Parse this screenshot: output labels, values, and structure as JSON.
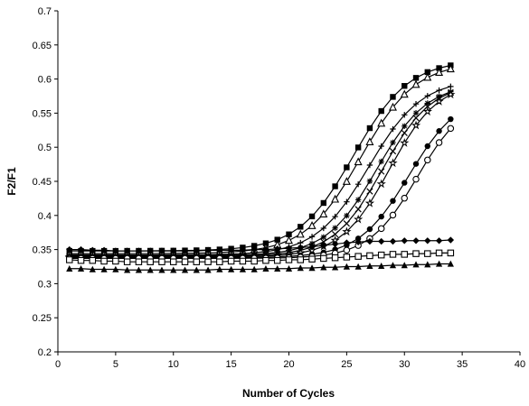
{
  "chart_data": {
    "type": "line",
    "xlabel": "Number of Cycles",
    "ylabel": "F2/F1",
    "xlim": [
      0,
      40
    ],
    "ylim": [
      0.2,
      0.7
    ],
    "xticks": [
      "0",
      "5",
      "10",
      "15",
      "20",
      "25",
      "30",
      "35",
      "40"
    ],
    "yticks": [
      "0.2",
      "0.25",
      "0.3",
      "0.35",
      "0.4",
      "0.45",
      "0.5",
      "0.55",
      "0.6",
      "0.65",
      "0.7"
    ],
    "grid": false,
    "series_colors": {
      "line": "#000000"
    },
    "series": [
      {
        "marker": "filled-square",
        "base": 0.348,
        "top": 0.628,
        "mid": 25.6,
        "slope": 0.42
      },
      {
        "marker": "open-triangle",
        "base": 0.344,
        "top": 0.625,
        "mid": 26.2,
        "slope": 0.42
      },
      {
        "marker": "plus",
        "base": 0.342,
        "top": 0.6,
        "mid": 26.9,
        "slope": 0.44
      },
      {
        "marker": "star",
        "base": 0.341,
        "top": 0.594,
        "mid": 27.6,
        "slope": 0.46
      },
      {
        "marker": "x",
        "base": 0.34,
        "top": 0.595,
        "mid": 28.1,
        "slope": 0.47
      },
      {
        "marker": "open-star",
        "base": 0.339,
        "top": 0.596,
        "mid": 28.7,
        "slope": 0.48
      },
      {
        "marker": "filled-circle",
        "base": 0.338,
        "top": 0.58,
        "mid": 30.4,
        "slope": 0.46
      },
      {
        "marker": "open-circle",
        "base": 0.337,
        "top": 0.575,
        "mid": 31.1,
        "slope": 0.48
      },
      {
        "marker": "filled-diamond",
        "x": [
          1,
          2,
          3,
          4,
          5,
          6,
          7,
          8,
          9,
          10,
          11,
          12,
          13,
          14,
          15,
          16,
          17,
          18,
          19,
          20,
          21,
          22,
          23,
          24,
          25,
          26,
          27,
          28,
          29,
          30,
          31,
          32,
          33,
          34
        ],
        "y": [
          0.35,
          0.35,
          0.349,
          0.349,
          0.348,
          0.348,
          0.348,
          0.348,
          0.348,
          0.348,
          0.348,
          0.348,
          0.349,
          0.349,
          0.349,
          0.349,
          0.35,
          0.35,
          0.351,
          0.352,
          0.353,
          0.354,
          0.356,
          0.358,
          0.36,
          0.361,
          0.362,
          0.362,
          0.362,
          0.363,
          0.363,
          0.363,
          0.363,
          0.364
        ]
      },
      {
        "marker": "open-square",
        "x": [
          1,
          2,
          3,
          4,
          5,
          6,
          7,
          8,
          9,
          10,
          11,
          12,
          13,
          14,
          15,
          16,
          17,
          18,
          19,
          20,
          21,
          22,
          23,
          24,
          25,
          26,
          27,
          28,
          29,
          30,
          31,
          32,
          33,
          34
        ],
        "y": [
          0.335,
          0.334,
          0.334,
          0.333,
          0.333,
          0.332,
          0.332,
          0.332,
          0.332,
          0.332,
          0.332,
          0.332,
          0.332,
          0.332,
          0.333,
          0.333,
          0.333,
          0.334,
          0.334,
          0.335,
          0.335,
          0.336,
          0.337,
          0.338,
          0.339,
          0.34,
          0.341,
          0.342,
          0.343,
          0.343,
          0.344,
          0.344,
          0.345,
          0.345
        ]
      },
      {
        "marker": "filled-triangle",
        "x": [
          1,
          2,
          3,
          4,
          5,
          6,
          7,
          8,
          9,
          10,
          11,
          12,
          13,
          14,
          15,
          16,
          17,
          18,
          19,
          20,
          21,
          22,
          23,
          24,
          25,
          26,
          27,
          28,
          29,
          30,
          31,
          32,
          33,
          34
        ],
        "y": [
          0.322,
          0.322,
          0.321,
          0.321,
          0.321,
          0.32,
          0.32,
          0.32,
          0.32,
          0.32,
          0.32,
          0.32,
          0.32,
          0.321,
          0.321,
          0.321,
          0.321,
          0.322,
          0.322,
          0.322,
          0.323,
          0.323,
          0.324,
          0.324,
          0.325,
          0.325,
          0.326,
          0.326,
          0.327,
          0.327,
          0.328,
          0.328,
          0.329,
          0.329
        ]
      }
    ]
  }
}
